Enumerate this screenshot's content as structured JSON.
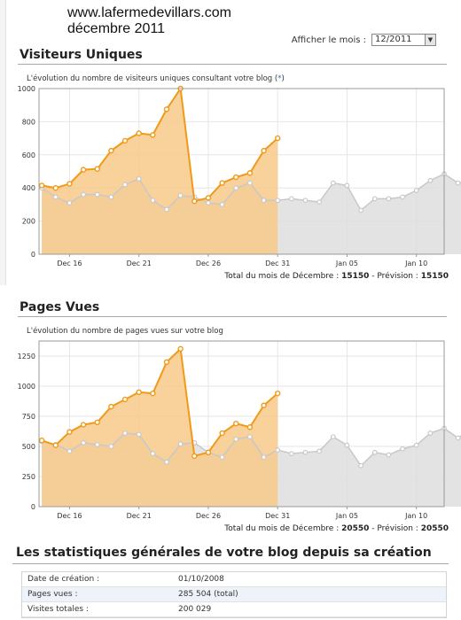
{
  "header": {
    "site": "www.lafermedevillars.com",
    "month": "décembre 2011"
  },
  "month_selector": {
    "label": "Afficher le mois :",
    "value": "12/2011"
  },
  "visitors_section": {
    "title": "Visiteurs Uniques",
    "subtitle": "L'évolution du nombre de visiteurs uniques consultant votre blog (",
    "help_link": "*",
    "subtitle_end": ")",
    "total_label": "Total du mois de Décembre : ",
    "total_value": "15150",
    "forecast_label": " - Prévision : ",
    "forecast_value": "15150"
  },
  "pages_section": {
    "title": "Pages Vues",
    "subtitle": "L'évolution du nombre de pages vues sur votre blog",
    "total_label": "Total du mois de Décembre : ",
    "total_value": "20550",
    "forecast_label": " - Prévision : ",
    "forecast_value": "20550"
  },
  "general": {
    "title": "Les statistiques générales de votre blog depuis sa création",
    "rows": [
      {
        "label": "Date de création :",
        "value": "01/10/2008"
      },
      {
        "label": "Pages vues :",
        "value": "285 504 (total)"
      },
      {
        "label": "Visites totales :",
        "value": "200 029"
      }
    ]
  },
  "colors": {
    "current_line": "#f09a18",
    "current_fill": "#f7c98a",
    "previous_line": "#c8c8c8",
    "previous_fill": "#dedede"
  },
  "chart_data": [
    {
      "type": "area",
      "x_tick_labels": [
        "Dec 16",
        "Dec 21",
        "Dec 26",
        "Dec 31",
        "Jan 05",
        "Jan 10"
      ],
      "x_tick_days": [
        16,
        21,
        26,
        31,
        36,
        41
      ],
      "ylim": [
        0,
        1000
      ],
      "yticks": [
        0,
        200,
        400,
        600,
        800,
        1000
      ],
      "xlim": [
        13.8,
        43
      ],
      "grid": true,
      "series": [
        {
          "role": "current",
          "x_start_day": 14,
          "values": [
            415,
            400,
            425,
            510,
            515,
            625,
            685,
            730,
            720,
            875,
            1000,
            320,
            340,
            430,
            465,
            490,
            625,
            700
          ]
        },
        {
          "role": "previous",
          "x_start_day": 14,
          "values": [
            400,
            345,
            310,
            360,
            360,
            345,
            420,
            455,
            325,
            270,
            355,
            345,
            310,
            300,
            400,
            430,
            325,
            325,
            335,
            325,
            315,
            430,
            415,
            265,
            335,
            335,
            345,
            385,
            445,
            485,
            430,
            440
          ]
        }
      ]
    },
    {
      "type": "area",
      "x_tick_labels": [
        "Dec 16",
        "Dec 21",
        "Dec 26",
        "Dec 31",
        "Jan 05",
        "Jan 10"
      ],
      "x_tick_days": [
        16,
        21,
        26,
        31,
        36,
        41
      ],
      "ylim": [
        0,
        1375
      ],
      "yticks": [
        0,
        250,
        500,
        750,
        1000,
        1250
      ],
      "xlim": [
        13.8,
        43
      ],
      "grid": true,
      "series": [
        {
          "role": "current",
          "x_start_day": 14,
          "values": [
            550,
            510,
            620,
            680,
            700,
            830,
            890,
            950,
            940,
            1200,
            1310,
            420,
            450,
            610,
            690,
            660,
            840,
            940
          ]
        },
        {
          "role": "previous",
          "x_start_day": 14,
          "values": [
            540,
            515,
            460,
            530,
            515,
            500,
            610,
            600,
            440,
            370,
            520,
            530,
            450,
            410,
            560,
            580,
            410,
            470,
            440,
            450,
            460,
            580,
            510,
            340,
            450,
            430,
            480,
            510,
            610,
            650,
            570,
            650
          ]
        }
      ]
    }
  ]
}
